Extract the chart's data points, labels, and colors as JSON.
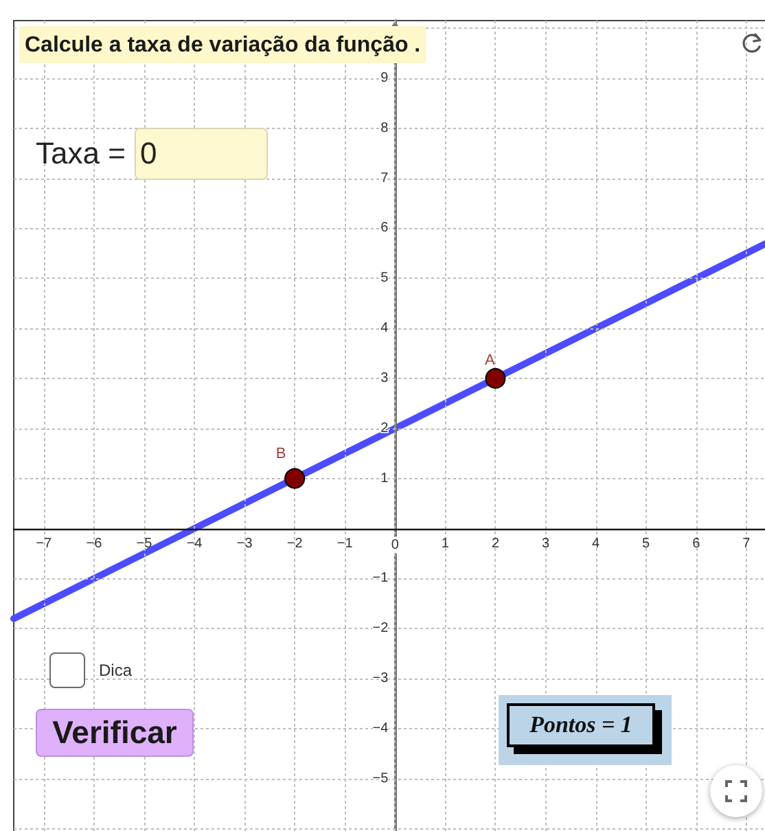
{
  "chart_data": {
    "type": "line",
    "title": "Calcule a taxa de variação da função .",
    "xlim": [
      -7.6,
      7.4
    ],
    "ylim": [
      -6.1,
      10.15
    ],
    "xticks": [
      {
        "value": -7,
        "label": "−7"
      },
      {
        "value": -6,
        "label": "−6"
      },
      {
        "value": -5,
        "label": "−5"
      },
      {
        "value": -4,
        "label": "−4"
      },
      {
        "value": -3,
        "label": "−3"
      },
      {
        "value": -2,
        "label": "−2"
      },
      {
        "value": -1,
        "label": "−1"
      },
      0,
      1,
      2,
      3,
      4,
      5,
      6,
      7
    ],
    "yticks": [
      {
        "value": -6,
        "label": null
      },
      {
        "value": -5,
        "label": "−5"
      },
      {
        "value": -4,
        "label": "−4"
      },
      {
        "value": -3,
        "label": "−3"
      },
      {
        "value": -2,
        "label": "−2"
      },
      {
        "value": -1,
        "label": "−1"
      },
      1,
      2,
      3,
      4,
      5,
      6,
      7,
      8,
      9,
      {
        "value": 10,
        "label": null
      }
    ],
    "grid": true,
    "series": [
      {
        "type": "line",
        "color": "#4c4cff",
        "x": [
          -7.6,
          7.4
        ],
        "values": [
          -1.8,
          5.7
        ],
        "marker": "none"
      },
      {
        "type": "scatter",
        "color": "#800000",
        "x": [
          -2,
          2
        ],
        "values": [
          1,
          3
        ],
        "marker": "circle"
      }
    ],
    "annotations": [
      {
        "text": "B",
        "x": -2,
        "y": 1
      },
      {
        "text": "A",
        "x": 2,
        "y": 3
      },
      "Taxa =",
      "0",
      "Dica",
      "Verificar",
      "Pontos = 1"
    ]
  }
}
